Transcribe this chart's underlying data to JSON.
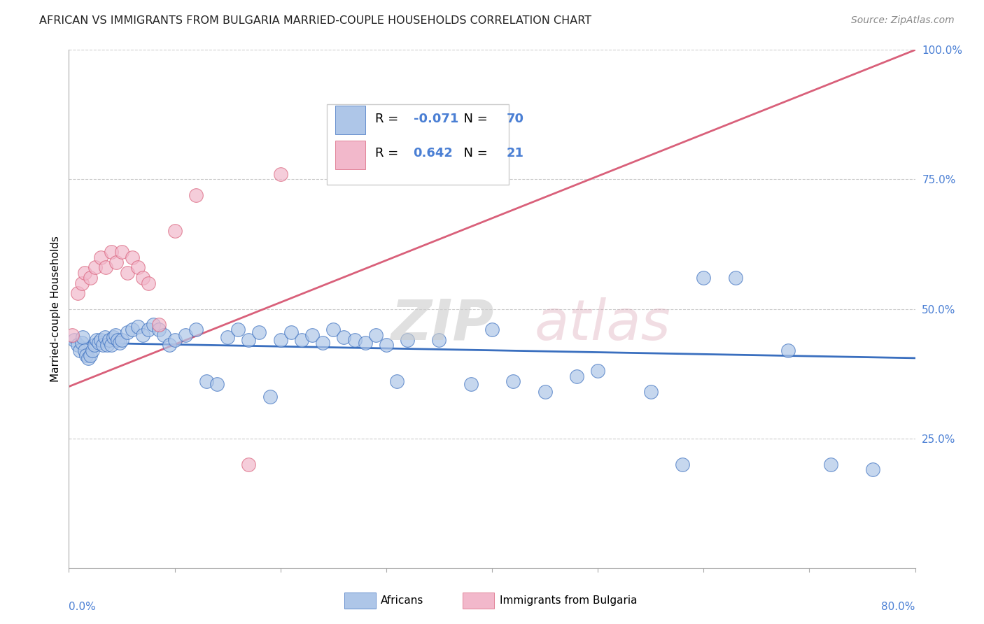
{
  "title": "AFRICAN VS IMMIGRANTS FROM BULGARIA MARRIED-COUPLE HOUSEHOLDS CORRELATION CHART",
  "source": "Source: ZipAtlas.com",
  "ylabel": "Married-couple Households",
  "xlim": [
    0.0,
    80.0
  ],
  "ylim": [
    0.0,
    100.0
  ],
  "yticks": [
    25.0,
    50.0,
    75.0,
    100.0
  ],
  "legend_R1": "-0.071",
  "legend_N1": "70",
  "legend_R2": "0.642",
  "legend_N2": "21",
  "blue_color": "#aec6e8",
  "pink_color": "#f2b8cb",
  "blue_line_color": "#3a6fbf",
  "pink_line_color": "#d9607a",
  "title_color": "#222222",
  "axis_label_color": "#4a7fd4",
  "blue_scatter_x": [
    0.5,
    0.8,
    1.0,
    1.2,
    1.3,
    1.5,
    1.6,
    1.8,
    2.0,
    2.2,
    2.4,
    2.6,
    2.8,
    3.0,
    3.2,
    3.4,
    3.6,
    3.8,
    4.0,
    4.2,
    4.4,
    4.6,
    4.8,
    5.0,
    5.5,
    6.0,
    6.5,
    7.0,
    7.5,
    8.0,
    8.5,
    9.0,
    9.5,
    10.0,
    11.0,
    12.0,
    13.0,
    14.0,
    15.0,
    16.0,
    17.0,
    18.0,
    19.0,
    20.0,
    21.0,
    22.0,
    23.0,
    24.0,
    25.0,
    26.0,
    27.0,
    28.0,
    29.0,
    30.0,
    31.0,
    32.0,
    35.0,
    38.0,
    40.0,
    42.0,
    45.0,
    48.0,
    50.0,
    55.0,
    58.0,
    60.0,
    63.0,
    68.0,
    72.0,
    76.0
  ],
  "blue_scatter_y": [
    44.0,
    43.0,
    42.0,
    43.5,
    44.5,
    42.0,
    41.0,
    40.5,
    41.0,
    42.0,
    43.0,
    44.0,
    43.5,
    44.0,
    43.0,
    44.5,
    43.0,
    44.0,
    43.0,
    44.5,
    45.0,
    44.0,
    43.5,
    44.0,
    45.5,
    46.0,
    46.5,
    45.0,
    46.0,
    47.0,
    46.0,
    45.0,
    43.0,
    44.0,
    45.0,
    46.0,
    36.0,
    35.5,
    44.5,
    46.0,
    44.0,
    45.5,
    33.0,
    44.0,
    45.5,
    44.0,
    45.0,
    43.5,
    46.0,
    44.5,
    44.0,
    43.5,
    45.0,
    43.0,
    36.0,
    44.0,
    44.0,
    35.5,
    46.0,
    36.0,
    34.0,
    37.0,
    38.0,
    34.0,
    20.0,
    56.0,
    56.0,
    42.0,
    20.0,
    19.0
  ],
  "pink_scatter_x": [
    0.3,
    0.8,
    1.2,
    1.5,
    2.0,
    2.5,
    3.0,
    3.5,
    4.0,
    4.5,
    5.0,
    5.5,
    6.0,
    6.5,
    7.0,
    7.5,
    8.5,
    10.0,
    12.0,
    17.0,
    20.0
  ],
  "pink_scatter_y": [
    45.0,
    53.0,
    55.0,
    57.0,
    56.0,
    58.0,
    60.0,
    58.0,
    61.0,
    59.0,
    61.0,
    57.0,
    60.0,
    58.0,
    56.0,
    55.0,
    47.0,
    65.0,
    72.0,
    20.0,
    76.0
  ]
}
